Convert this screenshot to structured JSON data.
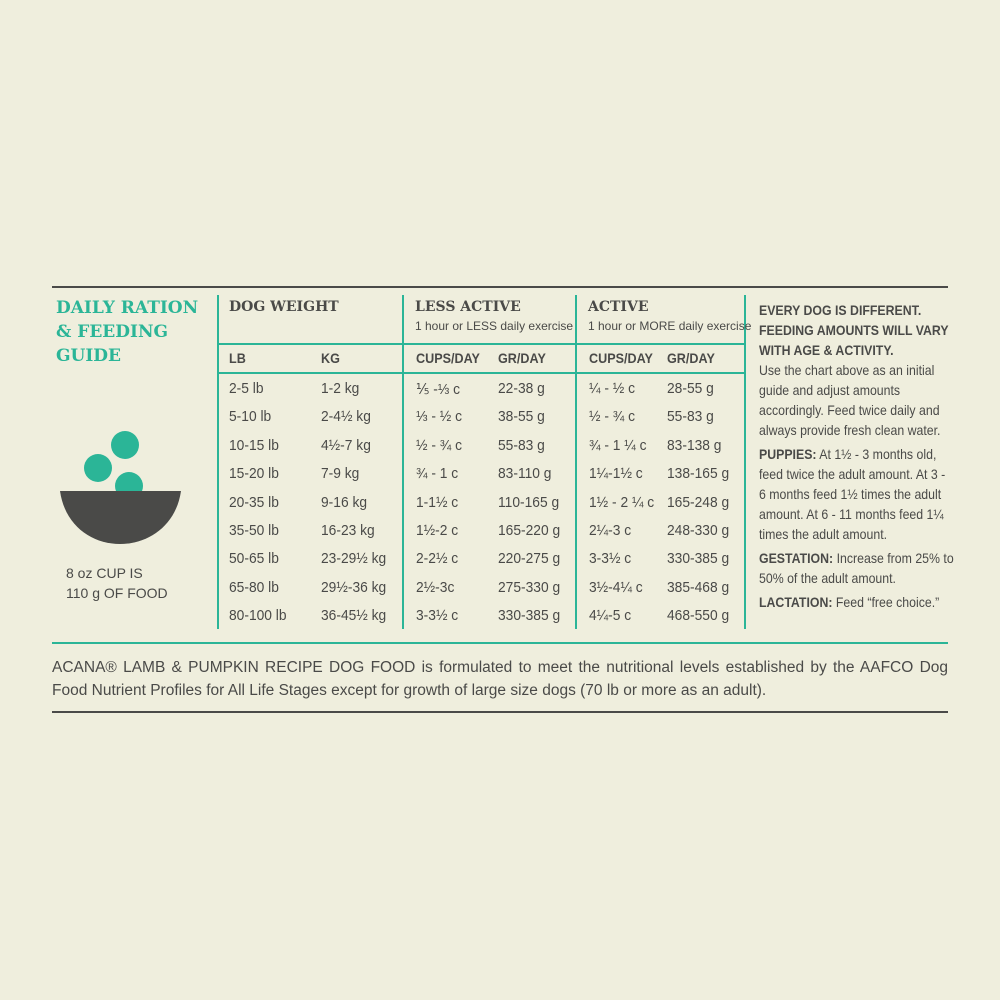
{
  "title": "DAILY RATION & FEEDING GUIDE",
  "colors": {
    "accent": "#2bb597",
    "text": "#4a4a48",
    "bowl": "#4a4a48",
    "background": "#efeedd"
  },
  "icon": "food-bowl-icon",
  "cup_note": {
    "line1": "8 oz CUP IS",
    "line2": "110 g OF FOOD"
  },
  "table": {
    "dog_weight": {
      "label": "DOG WEIGHT",
      "lb": "LB",
      "kg": "KG"
    },
    "less_active": {
      "label": "LESS ACTIVE",
      "sub": "1 hour or LESS daily exercise",
      "cups": "CUPS/DAY",
      "gr": "GR/DAY"
    },
    "active": {
      "label": "ACTIVE",
      "sub": "1 hour or MORE daily exercise",
      "cups": "CUPS/DAY",
      "gr": "GR/DAY"
    },
    "rows": [
      [
        "2-5 lb",
        "1-2 kg",
        "⅕ -⅓ c",
        "22-38 g",
        "¼ - ½ c",
        "28-55 g"
      ],
      [
        "5-10 lb",
        "2-4½ kg",
        "⅓ - ½ c",
        "38-55 g",
        "½ - ¾ c",
        "55-83 g"
      ],
      [
        "10-15 lb",
        "4½-7 kg",
        "½ - ¾ c",
        "55-83 g",
        "¾ - 1 ¼ c",
        "83-138 g"
      ],
      [
        "15-20 lb",
        "7-9 kg",
        "¾ - 1 c",
        "83-110 g",
        "1¼-1½ c",
        "138-165 g"
      ],
      [
        "20-35 lb",
        "9-16 kg",
        "1-1½ c",
        "110-165 g",
        "1½ - 2 ¼ c",
        "165-248 g"
      ],
      [
        "35-50 lb",
        "16-23 kg",
        "1½-2 c",
        "165-220 g",
        "2¼-3 c",
        "248-330 g"
      ],
      [
        "50-65 lb",
        "23-29½ kg",
        "2-2½ c",
        "220-275 g",
        "3-3½ c",
        "330-385 g"
      ],
      [
        "65-80 lb",
        "29½-36 kg",
        "2½-3c",
        "275-330 g",
        "3½-4¼ c",
        "385-468 g"
      ],
      [
        "80-100 lb",
        "36-45½ kg",
        "3-3½ c",
        "330-385 g",
        "4¼-5 c",
        "468-550 g"
      ]
    ]
  },
  "notes": {
    "heading": "EVERY DOG IS DIFFERENT. FEEDING AMOUNTS WILL VARY WITH AGE & ACTIVITY.",
    "intro": "Use the chart above as an initial guide and adjust amounts accordingly. Feed twice daily and always provide fresh clean water.",
    "puppies_label": "PUPPIES:",
    "puppies": "At 1½ - 3 months old, feed twice the adult amount. At 3 - 6 months feed 1½ times the adult amount. At 6 - 11 months feed 1¼ times the adult amount.",
    "gestation_label": "GESTATION:",
    "gestation": "Increase from 25% to 50% of the adult amount.",
    "lactation_label": "LACTATION:",
    "lactation": "Feed “free choice.”"
  },
  "footer": "ACANA® LAMB & PUMPKIN RECIPE DOG FOOD is formulated to meet the nutritional levels established by the AAFCO Dog Food Nutrient Profiles for All Life Stages except for growth of large size dogs (70 lb or more as an adult)."
}
